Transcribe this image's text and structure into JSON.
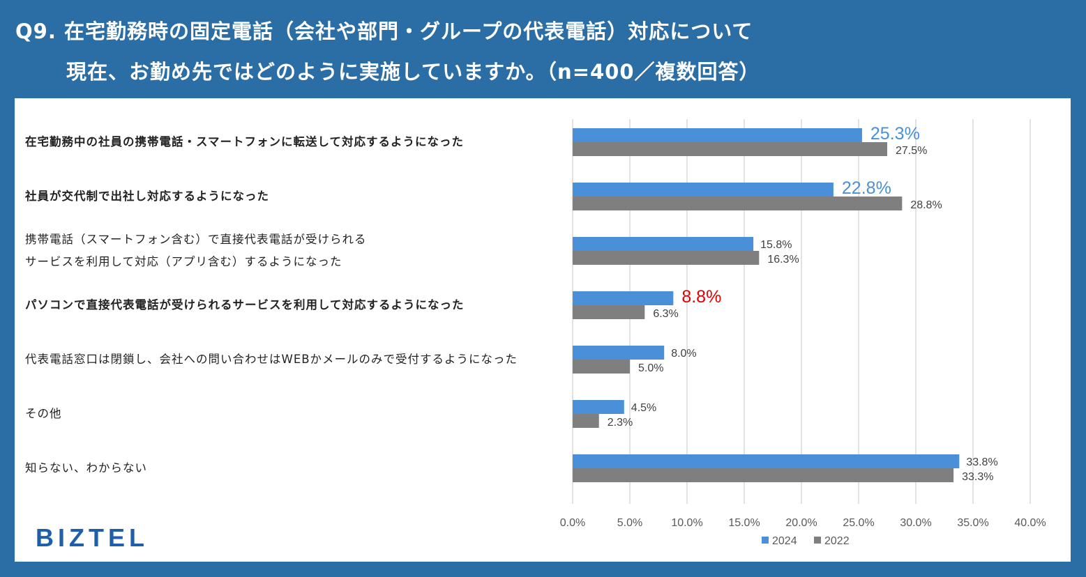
{
  "header": {
    "line1": "Q9. 在宅勤務時の固定電話（会社や部門・グループの代表電話）対応について",
    "line2": "現在、お勤め先ではどのように実施していますか。（n=400／複数回答）"
  },
  "brand": {
    "logo_text": "BIZTEL"
  },
  "colors": {
    "series_2024": "#4a90d9",
    "series_2022": "#7f7f7f",
    "highlight_blue": "#4a90d9",
    "highlight_red": "#e00000",
    "background": "#2b6ea6"
  },
  "chart_data": {
    "type": "bar",
    "orientation": "horizontal",
    "categories": [
      "在宅勤務中の社員の携帯電話・スマートフォンに転送して対応するようになった",
      "社員が交代制で出社し対応するようになった",
      "携帯電話（スマートフォン含む）で直接代表電話が受けられるサービスを利用して対応（アプリ含む）するようになった",
      "パソコンで直接代表電話が受けられるサービスを利用して対応するようになった",
      "代表電話窓口は閉鎖し、会社への問い合わせはWEBかメールのみで受付するようになった",
      "その他",
      "知らない、わからない"
    ],
    "category_lines": [
      [
        "在宅勤務中の社員の携帯電話・スマートフォンに転送して対応するようになった"
      ],
      [
        "社員が交代制で出社し対応するようになった"
      ],
      [
        "携帯電話（スマートフォン含む）で直接代表電話が受けられる",
        "サービスを利用して対応（アプリ含む）するようになった"
      ],
      [
        "パソコンで直接代表電話が受けられるサービスを利用して対応するようになった"
      ],
      [
        "代表電話窓口は閉鎖し、会社への問い合わせはWEBかメールのみで受付するようになった"
      ],
      [
        "その他"
      ],
      [
        "知らない、わからない"
      ]
    ],
    "category_bold": [
      true,
      true,
      false,
      true,
      false,
      false,
      false
    ],
    "series": [
      {
        "name": "2024",
        "values": [
          25.3,
          22.8,
          15.8,
          8.8,
          8.0,
          4.5,
          33.8
        ],
        "labels": [
          "25.3%",
          "22.8%",
          "15.8%",
          "8.8%",
          "8.0%",
          "4.5%",
          "33.8%"
        ]
      },
      {
        "name": "2022",
        "values": [
          27.5,
          28.8,
          16.3,
          6.3,
          5.0,
          2.3,
          33.3
        ],
        "labels": [
          "27.5%",
          "28.8%",
          "16.3%",
          "6.3%",
          "5.0%",
          "2.3%",
          "33.3%"
        ]
      }
    ],
    "label_highlight_2024": [
      "blue",
      "blue",
      "none",
      "red",
      "none",
      "none",
      "none"
    ],
    "xlim": [
      0,
      40
    ],
    "xticks": [
      "0.0%",
      "5.0%",
      "10.0%",
      "15.0%",
      "20.0%",
      "25.0%",
      "30.0%",
      "35.0%",
      "40.0%"
    ],
    "grid": true,
    "legend_position": "bottom"
  }
}
